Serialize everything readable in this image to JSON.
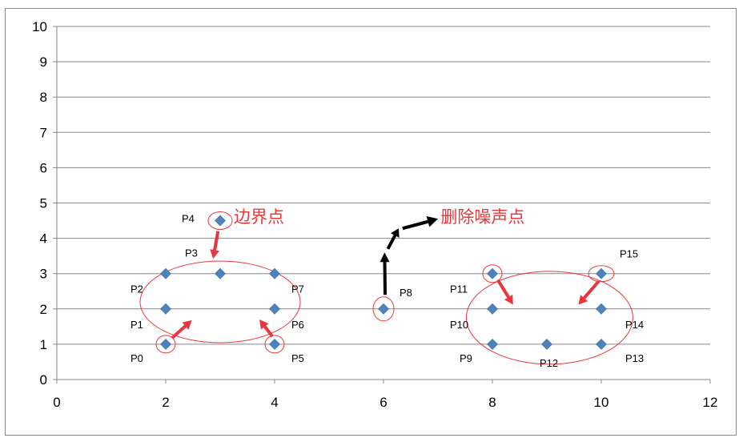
{
  "chart_data": {
    "type": "scatter",
    "title": "",
    "xlabel": "",
    "ylabel": "",
    "xlim": [
      0,
      12
    ],
    "ylim": [
      0,
      10
    ],
    "xticks": [
      0,
      2,
      4,
      6,
      8,
      10,
      12
    ],
    "yticks": [
      0,
      1,
      2,
      3,
      4,
      5,
      6,
      7,
      8,
      9,
      10
    ],
    "grid": "horizontal",
    "legend": "none",
    "marker": "diamond",
    "colors": {
      "marker": "#4f81bd",
      "annotation": "#e8383d",
      "noise_arrow": "#000000",
      "grid": "#888888"
    },
    "points": [
      {
        "label": "P0",
        "x": 2,
        "y": 1
      },
      {
        "label": "P1",
        "x": 2,
        "y": 2
      },
      {
        "label": "P2",
        "x": 2,
        "y": 3
      },
      {
        "label": "P3",
        "x": 3,
        "y": 3
      },
      {
        "label": "P4",
        "x": 3,
        "y": 4.5
      },
      {
        "label": "P5",
        "x": 4,
        "y": 1
      },
      {
        "label": "P6",
        "x": 4,
        "y": 2
      },
      {
        "label": "P7",
        "x": 4,
        "y": 3
      },
      {
        "label": "P8",
        "x": 6,
        "y": 2
      },
      {
        "label": "P9",
        "x": 8,
        "y": 1
      },
      {
        "label": "P10",
        "x": 8,
        "y": 2
      },
      {
        "label": "P11",
        "x": 8,
        "y": 3
      },
      {
        "label": "P12",
        "x": 9,
        "y": 1
      },
      {
        "label": "P13",
        "x": 10,
        "y": 1
      },
      {
        "label": "P14",
        "x": 10,
        "y": 2
      },
      {
        "label": "P15",
        "x": 10,
        "y": 3
      }
    ],
    "annotations": [
      {
        "text": "边界点",
        "x": 3.25,
        "y": 4.45
      },
      {
        "text": "删除噪声点",
        "x": 7.05,
        "y": 4.45
      }
    ]
  }
}
